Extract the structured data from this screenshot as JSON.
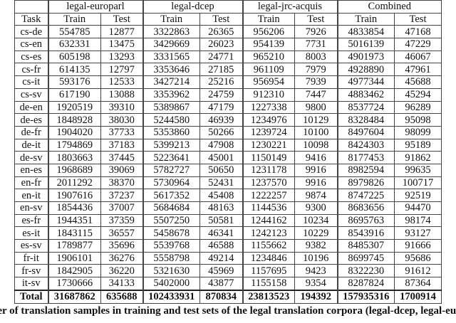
{
  "table": {
    "groups": [
      "legal-europarl",
      "legal-dcep",
      "legal-jrc-acquis",
      "Combined"
    ],
    "task_label": "Task",
    "sub": [
      "Train",
      "Test"
    ],
    "rows": [
      [
        "cs-de",
        "554785",
        "12877",
        "3322863",
        "26365",
        "956206",
        "7926",
        "4833854",
        "47168"
      ],
      [
        "cs-en",
        "632331",
        "13475",
        "3429669",
        "26023",
        "954139",
        "7731",
        "5016139",
        "47229"
      ],
      [
        "cs-es",
        "605198",
        "13293",
        "3331565",
        "24771",
        "965210",
        "8003",
        "4901973",
        "46067"
      ],
      [
        "cs-fr",
        "614135",
        "12797",
        "3353646",
        "27185",
        "961109",
        "7979",
        "4928890",
        "47961"
      ],
      [
        "cs-it",
        "593176",
        "12533",
        "3427214",
        "25216",
        "956954",
        "7939",
        "4977344",
        "45688"
      ],
      [
        "cs-sv",
        "617190",
        "13088",
        "3353962",
        "24759",
        "912310",
        "7447",
        "4883462",
        "45294"
      ],
      [
        "de-en",
        "1920519",
        "39310",
        "5389867",
        "47179",
        "1227338",
        "9800",
        "8537724",
        "96289"
      ],
      [
        "de-es",
        "1848928",
        "38030",
        "5244580",
        "46939",
        "1234976",
        "10129",
        "8328484",
        "95098"
      ],
      [
        "de-fr",
        "1904020",
        "37733",
        "5353860",
        "50266",
        "1239724",
        "10100",
        "8497604",
        "98099"
      ],
      [
        "de-it",
        "1794869",
        "37183",
        "5399213",
        "47908",
        "1230221",
        "10098",
        "8424303",
        "95189"
      ],
      [
        "de-sv",
        "1803663",
        "37445",
        "5223641",
        "45001",
        "1150149",
        "9416",
        "8177453",
        "91862"
      ],
      [
        "en-es",
        "1968689",
        "39069",
        "5782727",
        "50650",
        "1231178",
        "9916",
        "8982594",
        "99635"
      ],
      [
        "en-fr",
        "2011292",
        "38370",
        "5730964",
        "52431",
        "1237570",
        "9916",
        "8979826",
        "100717"
      ],
      [
        "en-it",
        "1907616",
        "37237",
        "5617352",
        "45408",
        "1222257",
        "9874",
        "8747225",
        "92519"
      ],
      [
        "en-sv",
        "1854436",
        "37007",
        "5684684",
        "48163",
        "1144536",
        "9300",
        "8683656",
        "94470"
      ],
      [
        "es-fr",
        "1944351",
        "37359",
        "5507250",
        "50581",
        "1244162",
        "10234",
        "8695763",
        "98174"
      ],
      [
        "es-it",
        "1843115",
        "36557",
        "5458678",
        "46341",
        "1242123",
        "10229",
        "8543916",
        "93127"
      ],
      [
        "es-sv",
        "1789877",
        "35696",
        "5539768",
        "46588",
        "1155662",
        "9382",
        "8485307",
        "91666"
      ],
      [
        "fr-it",
        "1906101",
        "36276",
        "5558798",
        "49214",
        "1234846",
        "10196",
        "8699745",
        "95686"
      ],
      [
        "fr-sv",
        "1842905",
        "36220",
        "5321630",
        "45969",
        "1157695",
        "9423",
        "8322230",
        "91612"
      ],
      [
        "it-sv",
        "1730666",
        "34133",
        "5402000",
        "43877",
        "1155158",
        "9354",
        "8287824",
        "87364"
      ]
    ],
    "total": [
      "Total",
      "31687862",
      "635688",
      "102433931",
      "870834",
      "23813523",
      "194392",
      "157935316",
      "1700914"
    ]
  },
  "caption": "ber of translation samples in training and test sets of the legal translation corpora (legal-dcep, legal-europ"
}
